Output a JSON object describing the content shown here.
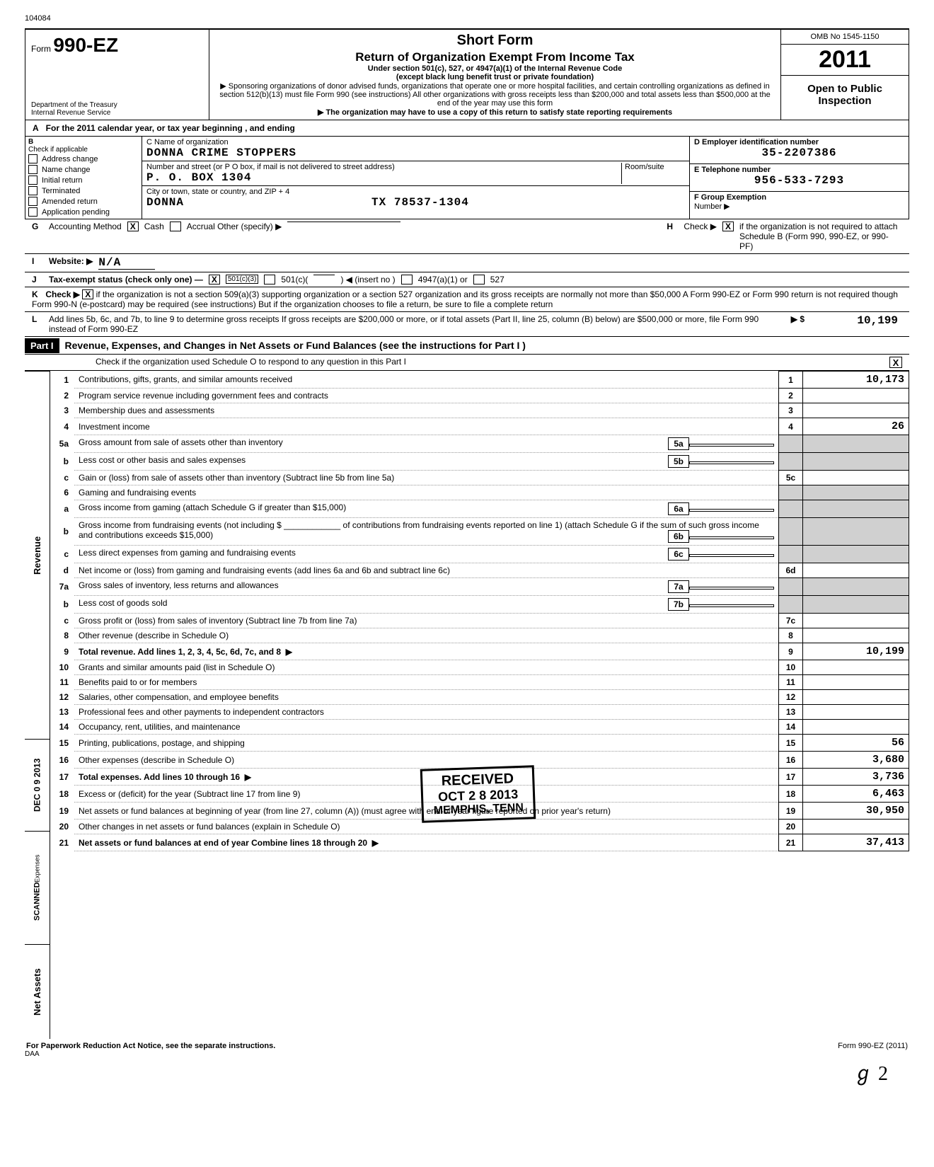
{
  "top_code": "104084",
  "header": {
    "form_prefix": "Form",
    "form_main": "990-EZ",
    "dept1": "Department of the Treasury",
    "dept2": "Internal Revenue Service",
    "title1": "Short Form",
    "title2": "Return of Organization Exempt From Income Tax",
    "sub1": "Under section 501(c), 527, or 4947(a)(1) of the Internal Revenue Code",
    "sub2": "(except black lung benefit trust or private foundation)",
    "sub3": "▶ Sponsoring organizations of donor advised funds, organizations that operate one or more hospital facilities, and certain controlling organizations as defined in section 512(b)(13) must file Form 990 (see instructions)  All other organizations with gross receipts less than $200,000 and total assets less than $500,000 at the end of the year may use this form",
    "sub4": "▶ The organization may have to use a copy of this return to satisfy state reporting requirements",
    "omb": "OMB No  1545-1150",
    "year": "2011",
    "open": "Open to Public Inspection"
  },
  "lineA": "For the 2011 calendar year, or tax year beginning                               , and ending",
  "B": {
    "hdr": "Check if applicable",
    "items": [
      "Address change",
      "Name change",
      "Initial return",
      "Terminated",
      "Amended return",
      "Application pending"
    ]
  },
  "C": {
    "lbl_name": "C  Name of organization",
    "name": "DONNA CRIME STOPPERS",
    "lbl_addr": "Number and street (or P O  box, if mail is not delivered to street address)",
    "room": "Room/suite",
    "addr": "P. O. BOX 1304",
    "lbl_city": "City or town, state or country, and ZIP + 4",
    "city": "DONNA                         TX 78537-1304"
  },
  "D": {
    "lbl": "D  Employer identification number",
    "val": "35-2207386",
    "lblE": "E  Telephone number",
    "valE": "956-533-7293",
    "lblF": "F  Group Exemption",
    "lblF2": "Number            ▶"
  },
  "G": {
    "lbl": "Accounting Method",
    "cash": "Cash",
    "accrual": "Accrual   Other (specify) ▶",
    "cash_x": "X"
  },
  "H": {
    "text": "Check ▶",
    "box_x": "X",
    "rest": "if the organization is not required to attach Schedule B (Form 990, 990-EZ, or 990-PF)"
  },
  "I": {
    "lbl": "Website: ▶",
    "val": "N/A"
  },
  "J": {
    "lbl": "Tax-exempt status (check only one) —",
    "c3": "501(c)(3)",
    "c3_x": "X",
    "c": "501(c)(",
    "insert": ")  ◀ (insert no )",
    "a": "4947(a)(1) or",
    "s": "527"
  },
  "K": {
    "lbl": "Check ▶",
    "x": "X",
    "text": "if the organization is not a section 509(a)(3) supporting organization or a section 527 organization and its gross receipts are normally not more than $50,000  A Form 990-EZ or Form 990 return is not required though Form 990-N (e-postcard) may be required (see instructions)  But if the organization chooses to file a return, be sure to file a complete return"
  },
  "L": {
    "text": "Add lines 5b, 6c, and 7b, to line 9 to determine gross receipts  If gross receipts are $200,000 or more, or if total assets (Part II, line 25, column (B) below) are $500,000 or more, file Form 990 instead of Form 990-EZ",
    "arrow": "▶  $",
    "amt": "10,199"
  },
  "part1": {
    "label": "Part I",
    "title": "Revenue, Expenses, and Changes in Net Assets or Fund Balances (see the instructions for Part I )",
    "check": "Check if the organization used Schedule O to respond to any question in this Part I",
    "check_x": "X"
  },
  "vlabels": {
    "rev": "Revenue",
    "date": "DEC 0 9 2013",
    "scan": "SCANNED",
    "exp": "Expenses",
    "na": "Net Assets"
  },
  "rows": [
    {
      "n": "1",
      "d": "Contributions, gifts, grants, and similar amounts received",
      "rn": "1",
      "a": "10,173"
    },
    {
      "n": "2",
      "d": "Program service revenue including government fees and contracts",
      "rn": "2",
      "a": ""
    },
    {
      "n": "3",
      "d": "Membership dues and assessments",
      "rn": "3",
      "a": ""
    },
    {
      "n": "4",
      "d": "Investment income",
      "rn": "4",
      "a": "26"
    },
    {
      "n": "5a",
      "d": "Gross amount from sale of assets other than inventory",
      "in": "5a",
      "shaded": true
    },
    {
      "n": "b",
      "d": "Less  cost or other basis and sales expenses",
      "in": "5b",
      "shaded": true
    },
    {
      "n": "c",
      "d": "Gain or (loss) from sale of assets other than inventory (Subtract line 5b from line 5a)",
      "rn": "5c",
      "a": ""
    },
    {
      "n": "6",
      "d": "Gaming and fundraising events",
      "shaded": true,
      "noR": true
    },
    {
      "n": "a",
      "d": "Gross income from gaming (attach Schedule G if greater than $15,000)",
      "in": "6a",
      "shaded": true
    },
    {
      "n": "b",
      "d": "Gross income from fundraising events (not including  $ ____________ of contributions from fundraising events reported on line 1) (attach Schedule G if the sum of such gross income and contributions exceeds $15,000)",
      "in": "6b",
      "shaded": true
    },
    {
      "n": "c",
      "d": "Less  direct expenses from gaming and fundraising events",
      "in": "6c",
      "shaded": true
    },
    {
      "n": "d",
      "d": "Net income or (loss) from gaming and fundraising events (add lines 6a and 6b and subtract line 6c)",
      "rn": "6d",
      "a": ""
    },
    {
      "n": "7a",
      "d": "Gross sales of inventory, less returns and allowances",
      "in": "7a",
      "shaded": true
    },
    {
      "n": "b",
      "d": "Less  cost of goods sold",
      "in": "7b",
      "shaded": true
    },
    {
      "n": "c",
      "d": "Gross profit or (loss) from sales of inventory (Subtract line 7b from line 7a)",
      "rn": "7c",
      "a": ""
    },
    {
      "n": "8",
      "d": "Other revenue (describe in Schedule O)",
      "rn": "8",
      "a": ""
    },
    {
      "n": "9",
      "d": "Total revenue. Add lines 1, 2, 3, 4, 5c, 6d, 7c, and 8",
      "rn": "9",
      "a": "10,199",
      "bold": true,
      "arrow": true
    },
    {
      "n": "10",
      "d": "Grants and similar amounts paid (list in Schedule O)",
      "rn": "10",
      "a": ""
    },
    {
      "n": "11",
      "d": "Benefits paid to or for members",
      "rn": "11",
      "a": ""
    },
    {
      "n": "12",
      "d": "Salaries, other compensation, and employee benefits",
      "rn": "12",
      "a": ""
    },
    {
      "n": "13",
      "d": "Professional fees and other payments to independent contractors",
      "rn": "13",
      "a": ""
    },
    {
      "n": "14",
      "d": "Occupancy, rent, utilities, and maintenance",
      "rn": "14",
      "a": ""
    },
    {
      "n": "15",
      "d": "Printing, publications, postage, and shipping",
      "rn": "15",
      "a": "56"
    },
    {
      "n": "16",
      "d": "Other expenses (describe in Schedule O)",
      "rn": "16",
      "a": "3,680"
    },
    {
      "n": "17",
      "d": "Total expenses. Add lines 10 through 16",
      "rn": "17",
      "a": "3,736",
      "bold": true,
      "arrow": true
    },
    {
      "n": "18",
      "d": "Excess or (deficit) for the year (Subtract line 17 from line 9)",
      "rn": "18",
      "a": "6,463"
    },
    {
      "n": "19",
      "d": "Net assets or fund balances at beginning of year (from line 27, column (A)) (must agree with end-of-year figure reported on prior year's return)",
      "rn": "19",
      "a": "30,950"
    },
    {
      "n": "20",
      "d": "Other changes in net assets or fund balances (explain in Schedule O)",
      "rn": "20",
      "a": ""
    },
    {
      "n": "21",
      "d": "Net assets or fund balances at end of year  Combine lines 18 through 20",
      "rn": "21",
      "a": "37,413",
      "bold": true,
      "arrow": true
    }
  ],
  "stamp": {
    "r1": "RECEIVED",
    "r2": "OCT 2 8 2013",
    "r3": "MEMPHIS, TENN"
  },
  "footer": {
    "l": "For Paperwork Reduction Act Notice, see the separate instructions.",
    "m": "DAA",
    "r": "Form 990-EZ (2011)"
  },
  "initials": "ℊ 2"
}
